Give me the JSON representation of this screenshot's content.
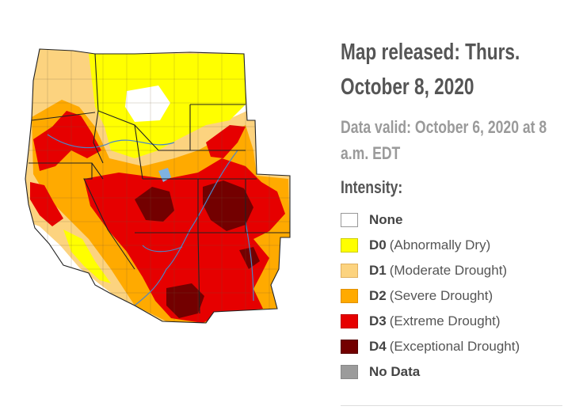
{
  "header": {
    "released": "Map released: Thurs. October 8, 2020",
    "valid": "Data valid: October 6, 2020 at 8 a.m. EDT",
    "intensity_label": "Intensity:"
  },
  "legend": [
    {
      "code": "None",
      "desc": "",
      "color": "#ffffff",
      "border": "#999999"
    },
    {
      "code": "D0",
      "desc": "(Abnormally Dry)",
      "color": "#ffff00",
      "border": "#cccc00"
    },
    {
      "code": "D1",
      "desc": "(Moderate Drought)",
      "color": "#fcd37f",
      "border": "#e0b060"
    },
    {
      "code": "D2",
      "desc": "(Severe Drought)",
      "color": "#ffaa00",
      "border": "#e09000"
    },
    {
      "code": "D3",
      "desc": "(Extreme Drought)",
      "color": "#e60000",
      "border": "#c00000"
    },
    {
      "code": "D4",
      "desc": "(Exceptional Drought)",
      "color": "#730000",
      "border": "#550000"
    },
    {
      "code": "No Data",
      "desc": "",
      "color": "#9b9b9b",
      "border": "#888888"
    }
  ],
  "map_colors": {
    "none": "#ffffff",
    "d0": "#ffff00",
    "d1": "#fcd37f",
    "d2": "#ffaa00",
    "d3": "#e60000",
    "d4": "#730000",
    "lines": "#333333",
    "rivers": "#4a86c8"
  }
}
